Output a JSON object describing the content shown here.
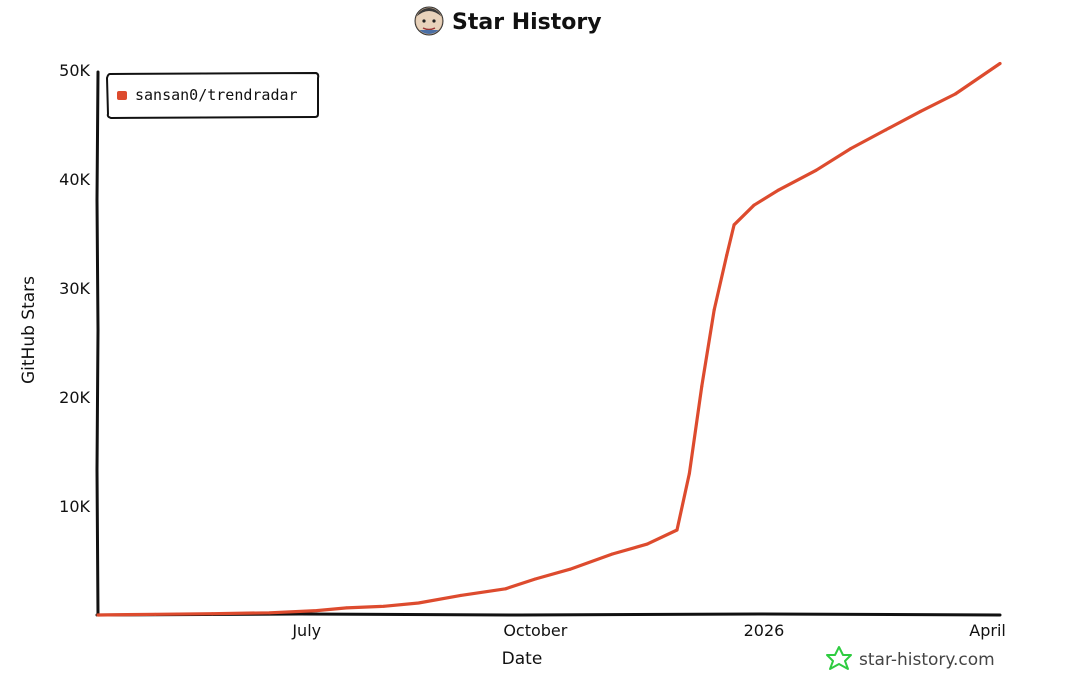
{
  "header": {
    "title": "Star History",
    "avatar_icon": "avatar-icon"
  },
  "legend": {
    "entries": [
      "sansan0/trendradar"
    ],
    "placement": "top-left"
  },
  "watermark": {
    "text": "star-history.com",
    "icon": "star-icon",
    "color": "#2ecc40"
  },
  "colors": {
    "series": "#dd4b2e",
    "axis": "#111111"
  },
  "chart_data": {
    "type": "line",
    "title": "Star History",
    "xlabel": "Date",
    "ylabel": "GitHub Stars",
    "x_ticks": [
      "July",
      "October",
      "2026",
      "April"
    ],
    "x_tick_dates": [
      "2025-07-01",
      "2025-10-01",
      "2026-01-01",
      "2026-04-01"
    ],
    "y_ticks": [
      "10K",
      "20K",
      "30K",
      "40K",
      "50K"
    ],
    "y_tick_values": [
      10000,
      20000,
      30000,
      40000,
      50000
    ],
    "xlim": [
      "2025-04-08",
      "2026-04-06"
    ],
    "ylim": [
      0,
      50000
    ],
    "grid": false,
    "legend_placement": "top-left",
    "series": [
      {
        "name": "sansan0/trendradar",
        "color": "#dd4b2e",
        "points": [
          [
            "2025-04-08",
            0
          ],
          [
            "2025-05-01",
            60
          ],
          [
            "2025-05-24",
            120
          ],
          [
            "2025-06-16",
            200
          ],
          [
            "2025-07-05",
            400
          ],
          [
            "2025-07-17",
            650
          ],
          [
            "2025-08-01",
            800
          ],
          [
            "2025-08-15",
            1100
          ],
          [
            "2025-09-01",
            1800
          ],
          [
            "2025-09-19",
            2400
          ],
          [
            "2025-10-01",
            3300
          ],
          [
            "2025-10-15",
            4200
          ],
          [
            "2025-11-01",
            5600
          ],
          [
            "2025-11-15",
            6500
          ],
          [
            "2025-11-27",
            7800
          ],
          [
            "2025-12-02",
            13000
          ],
          [
            "2025-12-07",
            21000
          ],
          [
            "2025-12-12",
            28000
          ],
          [
            "2025-12-17",
            33000
          ],
          [
            "2025-12-20",
            35800
          ],
          [
            "2025-12-28",
            37600
          ],
          [
            "2026-01-07",
            39000
          ],
          [
            "2026-01-22",
            40800
          ],
          [
            "2026-02-05",
            42800
          ],
          [
            "2026-02-19",
            44500
          ],
          [
            "2026-03-05",
            46200
          ],
          [
            "2026-03-19",
            47800
          ],
          [
            "2026-04-06",
            50600
          ]
        ]
      }
    ]
  }
}
